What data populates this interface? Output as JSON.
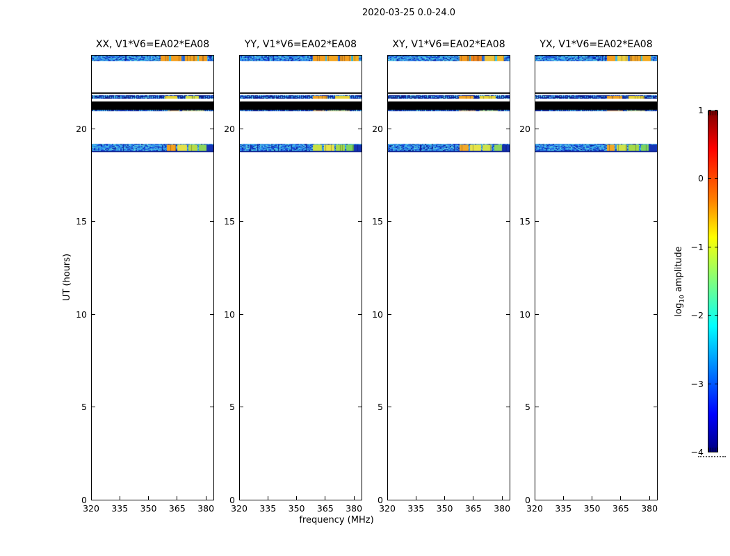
{
  "figure": {
    "title": "2020-03-25 0.0-24.0",
    "background": "#ffffff"
  },
  "chart_data": {
    "type": "heatmap",
    "title": "2020-03-25 0.0-24.0",
    "xlabel": "frequency (MHz)",
    "ylabel": "UT (hours)",
    "x_range": [
      320,
      384.3
    ],
    "y_range": [
      0,
      24
    ],
    "x_ticks": [
      320,
      335,
      350,
      365,
      380
    ],
    "y_ticks": [
      0,
      5,
      10,
      15,
      20
    ],
    "grid": false,
    "noise_palette": [
      "#1133cc",
      "#1e55e0",
      "#2a7de8",
      "#38a8e8",
      "#4cc4e4",
      "#66d8de",
      "#0c1f96",
      "#1b45d8",
      "#3397e6",
      "#45bce6",
      "#2a7de8",
      "#38a8e8"
    ],
    "sparse_palette": [
      "#2a7de8",
      "#45bce6",
      "#1e55e0",
      "#66d8de",
      "#38a8e8"
    ],
    "colorbar": {
      "label_prefix": "log",
      "label_sub": "10",
      "label_suffix": " amplitude",
      "range": [
        -4,
        1
      ],
      "ticks": [
        1,
        0,
        -1,
        -2,
        -3,
        -4
      ],
      "colormap": "jet",
      "gradient": [
        [
          "#00007f",
          0
        ],
        [
          "#0000ff",
          0.11
        ],
        [
          "#00ffff",
          0.37
        ],
        [
          "#7fff7f",
          0.5
        ],
        [
          "#ffff00",
          0.63
        ],
        [
          "#ff7f00",
          0.74
        ],
        [
          "#ff0000",
          0.89
        ],
        [
          "#7f0000",
          1
        ]
      ]
    },
    "panels": [
      {
        "pol": "XX",
        "title": "XX, V1*V6=EA02*EA08",
        "scans": [
          {
            "ut": [
              23.67,
              24.0
            ],
            "style": "noise",
            "segments": [
              {
                "f": [
                  0.565,
                  0.635
                ],
                "color": "#f59f1e"
              },
              {
                "f": [
                  0.635,
                  0.648
                ],
                "color": "#39b9e9"
              },
              {
                "f": [
                  0.648,
                  0.737
                ],
                "color": "#f59f1e"
              },
              {
                "f": [
                  0.737,
                  0.762
                ],
                "color": "#2a6fe0"
              },
              {
                "f": [
                  0.762,
                  0.862
                ],
                "color": "#f5a51e"
              },
              {
                "f": [
                  0.862,
                  0.877
                ],
                "color": "#39c9e9"
              },
              {
                "f": [
                  0.877,
                  0.942
                ],
                "color": "#f59f1e"
              }
            ]
          },
          {
            "ut": [
              21.92,
              21.99
            ],
            "style": "solid",
            "color": "#000000"
          },
          {
            "ut": [
              21.65,
              21.83
            ],
            "style": "sparse",
            "segments": [
              {
                "f": [
                  0.6,
                  0.7
                ],
                "color": "#e8d43a"
              },
              {
                "f": [
                  0.77,
                  0.875
                ],
                "color": "#d8e24a"
              }
            ]
          },
          {
            "ut": [
              21.05,
              21.5
            ],
            "style": "solid",
            "color": "#000000"
          },
          {
            "ut": [
              20.95,
              21.05
            ],
            "style": "sparse",
            "segments": [
              {
                "f": [
                  0.62,
                  0.72
                ],
                "color": "#f0b020"
              },
              {
                "f": [
                  0.74,
                  0.92
                ],
                "color": "#e8d43a"
              }
            ]
          },
          {
            "ut": [
              18.75,
              19.22
            ],
            "style": "noise",
            "bottom_edge": "#0a1f8e",
            "segments": [
              {
                "f": [
                  0.615,
                  0.688
                ],
                "color": "#f6a11c"
              },
              {
                "f": [
                  0.703,
                  0.782
                ],
                "color": "#e3e04a"
              },
              {
                "f": [
                  0.793,
                  0.862
                ],
                "color": "#b8dc46"
              },
              {
                "f": [
                  0.877,
                  0.936
                ],
                "color": "#8ed45c"
              },
              {
                "f": [
                  0.936,
                  1.0
                ],
                "color": "#1535b5"
              }
            ]
          }
        ]
      },
      {
        "pol": "YY",
        "title": "YY, V1*V6=EA02*EA08",
        "scans": [
          {
            "ut": [
              23.67,
              24.0
            ],
            "style": "noise",
            "segments": [
              {
                "f": [
                  0.6,
                  0.7
                ],
                "color": "#f59f1e"
              },
              {
                "f": [
                  0.7,
                  0.714
                ],
                "color": "#39b9e9"
              },
              {
                "f": [
                  0.714,
                  0.8
                ],
                "color": "#f5a51e"
              },
              {
                "f": [
                  0.8,
                  0.82
                ],
                "color": "#2a6fe0"
              },
              {
                "f": [
                  0.82,
                  0.91
                ],
                "color": "#f59f1e"
              },
              {
                "f": [
                  0.91,
                  0.925
                ],
                "color": "#39c9e9"
              },
              {
                "f": [
                  0.925,
                  0.97
                ],
                "color": "#f6ae1c"
              }
            ]
          },
          {
            "ut": [
              21.92,
              21.99
            ],
            "style": "solid",
            "color": "#000000"
          },
          {
            "ut": [
              21.65,
              21.83
            ],
            "style": "sparse",
            "segments": [
              {
                "f": [
                  0.6,
                  0.72
                ],
                "color": "#f0a425"
              },
              {
                "f": [
                  0.78,
                  0.9
                ],
                "color": "#e8d43a"
              }
            ]
          },
          {
            "ut": [
              21.05,
              21.5
            ],
            "style": "solid",
            "color": "#000000"
          },
          {
            "ut": [
              20.95,
              21.05
            ],
            "style": "sparse",
            "segments": [
              {
                "f": [
                  0.6,
                  0.7
                ],
                "color": "#f59f1e"
              },
              {
                "f": [
                  0.72,
                  0.9
                ],
                "color": "#e0cf35"
              }
            ]
          },
          {
            "ut": [
              18.75,
              19.22
            ],
            "style": "noise",
            "bottom_edge": "#0a1f8e",
            "segments": [
              {
                "f": [
                  0.6,
                  0.675
                ],
                "color": "#c9e045"
              },
              {
                "f": [
                  0.69,
                  0.775
                ],
                "color": "#e6e44a"
              },
              {
                "f": [
                  0.788,
                  0.856
                ],
                "color": "#a5da4a"
              },
              {
                "f": [
                  0.87,
                  0.932
                ],
                "color": "#7fd45f"
              },
              {
                "f": [
                  0.932,
                  1.0
                ],
                "color": "#1535b5"
              }
            ]
          }
        ]
      },
      {
        "pol": "XY",
        "title": "XY, V1*V6=EA02*EA08",
        "scans": [
          {
            "ut": [
              23.67,
              24.0
            ],
            "style": "noise",
            "segments": [
              {
                "f": [
                  0.585,
                  0.665
                ],
                "color": "#f59a1c"
              },
              {
                "f": [
                  0.665,
                  0.68
                ],
                "color": "#39b9e9"
              },
              {
                "f": [
                  0.68,
                  0.77
                ],
                "color": "#f08418"
              },
              {
                "f": [
                  0.77,
                  0.79
                ],
                "color": "#2a6fe0"
              },
              {
                "f": [
                  0.79,
                  0.875
                ],
                "color": "#eec33c"
              },
              {
                "f": [
                  0.875,
                  0.89
                ],
                "color": "#39c9e9"
              },
              {
                "f": [
                  0.89,
                  0.95
                ],
                "color": "#f2b92e"
              }
            ]
          },
          {
            "ut": [
              21.92,
              21.99
            ],
            "style": "solid",
            "color": "#000000"
          },
          {
            "ut": [
              21.65,
              21.83
            ],
            "style": "sparse",
            "segments": [
              {
                "f": [
                  0.58,
                  0.7
                ],
                "color": "#f0a425"
              },
              {
                "f": [
                  0.75,
                  0.88
                ],
                "color": "#e8d43a"
              }
            ]
          },
          {
            "ut": [
              21.05,
              21.5
            ],
            "style": "solid",
            "color": "#000000"
          },
          {
            "ut": [
              20.95,
              21.05
            ],
            "style": "sparse",
            "segments": [
              {
                "f": [
                  0.58,
                  0.72
                ],
                "color": "#f0a020"
              },
              {
                "f": [
                  0.75,
                  0.9
                ],
                "color": "#cfe04a"
              }
            ]
          },
          {
            "ut": [
              18.75,
              19.22
            ],
            "style": "noise",
            "bottom_edge": "#0a1f8e",
            "segments": [
              {
                "f": [
                  0.585,
                  0.66
                ],
                "color": "#f2a928"
              },
              {
                "f": [
                  0.675,
                  0.76
                ],
                "color": "#e6e44a"
              },
              {
                "f": [
                  0.775,
                  0.85
                ],
                "color": "#cfe24a"
              },
              {
                "f": [
                  0.868,
                  0.93
                ],
                "color": "#8ed45c"
              },
              {
                "f": [
                  0.93,
                  1.0
                ],
                "color": "#1535b5"
              }
            ]
          }
        ]
      },
      {
        "pol": "YX",
        "title": "YX, V1*V6=EA02*EA08",
        "scans": [
          {
            "ut": [
              23.67,
              24.0
            ],
            "style": "noise",
            "segments": [
              {
                "f": [
                  0.59,
                  0.655
                ],
                "color": "#f59f1e"
              },
              {
                "f": [
                  0.655,
                  0.67
                ],
                "color": "#39b9e9"
              },
              {
                "f": [
                  0.67,
                  0.755
                ],
                "color": "#eed040"
              },
              {
                "f": [
                  0.755,
                  0.775
                ],
                "color": "#2a6fe0"
              },
              {
                "f": [
                  0.775,
                  0.862
                ],
                "color": "#f2a524"
              },
              {
                "f": [
                  0.862,
                  0.877
                ],
                "color": "#39c9e9"
              },
              {
                "f": [
                  0.877,
                  0.945
                ],
                "color": "#f5ab20"
              }
            ]
          },
          {
            "ut": [
              21.92,
              21.99
            ],
            "style": "solid",
            "color": "#000000"
          },
          {
            "ut": [
              21.65,
              21.83
            ],
            "style": "sparse",
            "segments": [
              {
                "f": [
                  0.59,
                  0.71
                ],
                "color": "#f0a425"
              },
              {
                "f": [
                  0.76,
                  0.89
                ],
                "color": "#e8d43a"
              }
            ]
          },
          {
            "ut": [
              21.05,
              21.5
            ],
            "style": "solid",
            "color": "#000000"
          },
          {
            "ut": [
              20.95,
              21.05
            ],
            "style": "sparse",
            "segments": [
              {
                "f": [
                  0.59,
                  0.72
                ],
                "color": "#f0a020"
              },
              {
                "f": [
                  0.75,
                  0.9
                ],
                "color": "#d8e24a"
              }
            ]
          },
          {
            "ut": [
              18.75,
              19.22
            ],
            "style": "noise",
            "bottom_edge": "#0a1f8e",
            "segments": [
              {
                "f": [
                  0.585,
                  0.652
                ],
                "color": "#f2a928"
              },
              {
                "f": [
                  0.667,
                  0.75
                ],
                "color": "#cfe24a"
              },
              {
                "f": [
                  0.764,
                  0.845
                ],
                "color": "#a5da4a"
              },
              {
                "f": [
                  0.862,
                  0.925
                ],
                "color": "#7fd45f"
              },
              {
                "f": [
                  0.925,
                  1.0
                ],
                "color": "#1535b5"
              }
            ]
          }
        ]
      }
    ]
  }
}
